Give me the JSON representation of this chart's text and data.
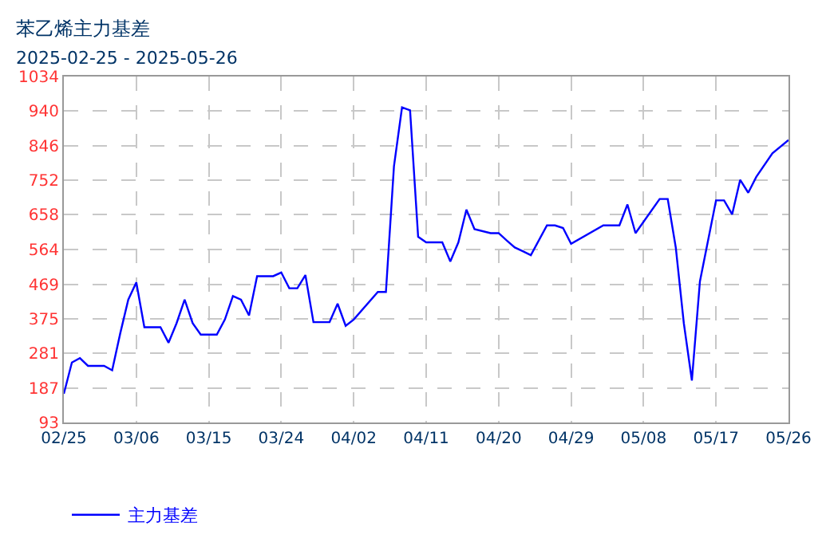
{
  "chart_data": {
    "type": "line",
    "title": "苯乙烯主力基差",
    "subtitle": "2025-02-25 - 2025-05-26",
    "x": [
      "2025-02-25",
      "2025-02-26",
      "2025-02-27",
      "2025-02-28",
      "2025-03-02",
      "2025-03-03",
      "2025-03-04",
      "2025-03-05",
      "2025-03-06",
      "2025-03-07",
      "2025-03-09",
      "2025-03-10",
      "2025-03-11",
      "2025-03-12",
      "2025-03-13",
      "2025-03-14",
      "2025-03-16",
      "2025-03-17",
      "2025-03-18",
      "2025-03-19",
      "2025-03-20",
      "2025-03-21",
      "2025-03-23",
      "2025-03-24",
      "2025-03-25",
      "2025-03-26",
      "2025-03-27",
      "2025-03-28",
      "2025-03-30",
      "2025-03-31",
      "2025-04-01",
      "2025-04-02",
      "2025-04-05",
      "2025-04-06",
      "2025-04-07",
      "2025-04-08",
      "2025-04-09",
      "2025-04-10",
      "2025-04-11",
      "2025-04-13",
      "2025-04-14",
      "2025-04-15",
      "2025-04-16",
      "2025-04-17",
      "2025-04-19",
      "2025-04-20",
      "2025-04-21",
      "2025-04-22",
      "2025-04-23",
      "2025-04-24",
      "2025-04-26",
      "2025-04-27",
      "2025-04-28",
      "2025-04-29",
      "2025-05-03",
      "2025-05-05",
      "2025-05-06",
      "2025-05-07",
      "2025-05-10",
      "2025-05-11",
      "2025-05-12",
      "2025-05-13",
      "2025-05-14",
      "2025-05-15",
      "2025-05-17",
      "2025-05-18",
      "2025-05-19",
      "2025-05-20",
      "2025-05-21",
      "2025-05-22",
      "2025-05-24",
      "2025-05-26"
    ],
    "series": [
      {
        "name": "主力基差",
        "color": "#0000ff",
        "values": [
          171,
          256,
          268,
          247,
          247,
          235,
          335,
          427,
          474,
          352,
          352,
          310,
          363,
          427,
          363,
          332,
          332,
          373,
          437,
          427,
          384,
          491,
          491,
          501,
          458,
          458,
          494,
          366,
          366,
          416,
          356,
          373,
          448,
          448,
          790,
          950,
          942,
          598,
          583,
          583,
          531,
          583,
          672,
          619,
          608,
          608,
          588,
          569,
          559,
          548,
          629,
          629,
          622,
          579,
          629,
          629,
          686,
          608,
          701,
          701,
          569,
          363,
          207,
          477,
          697,
          697,
          659,
          753,
          718,
          761,
          825,
          861
        ]
      }
    ],
    "xlim": [
      "2025-02-25",
      "2025-05-26"
    ],
    "xticks": [
      {
        "value": "2025-02-25",
        "label": "02/25"
      },
      {
        "value": "2025-03-06",
        "label": "03/06"
      },
      {
        "value": "2025-03-15",
        "label": "03/15"
      },
      {
        "value": "2025-03-24",
        "label": "03/24"
      },
      {
        "value": "2025-04-02",
        "label": "04/02"
      },
      {
        "value": "2025-04-11",
        "label": "04/11"
      },
      {
        "value": "2025-04-20",
        "label": "04/20"
      },
      {
        "value": "2025-04-29",
        "label": "04/29"
      },
      {
        "value": "2025-05-08",
        "label": "05/08"
      },
      {
        "value": "2025-05-17",
        "label": "05/17"
      },
      {
        "value": "2025-05-26",
        "label": "05/26"
      }
    ],
    "ylim": [
      93,
      1034
    ],
    "yticks": [
      93,
      187,
      281,
      375,
      469,
      564,
      658,
      752,
      846,
      940,
      1034
    ],
    "grid": true,
    "legend": "bottom left",
    "line_style": "solid",
    "marker": "none"
  }
}
